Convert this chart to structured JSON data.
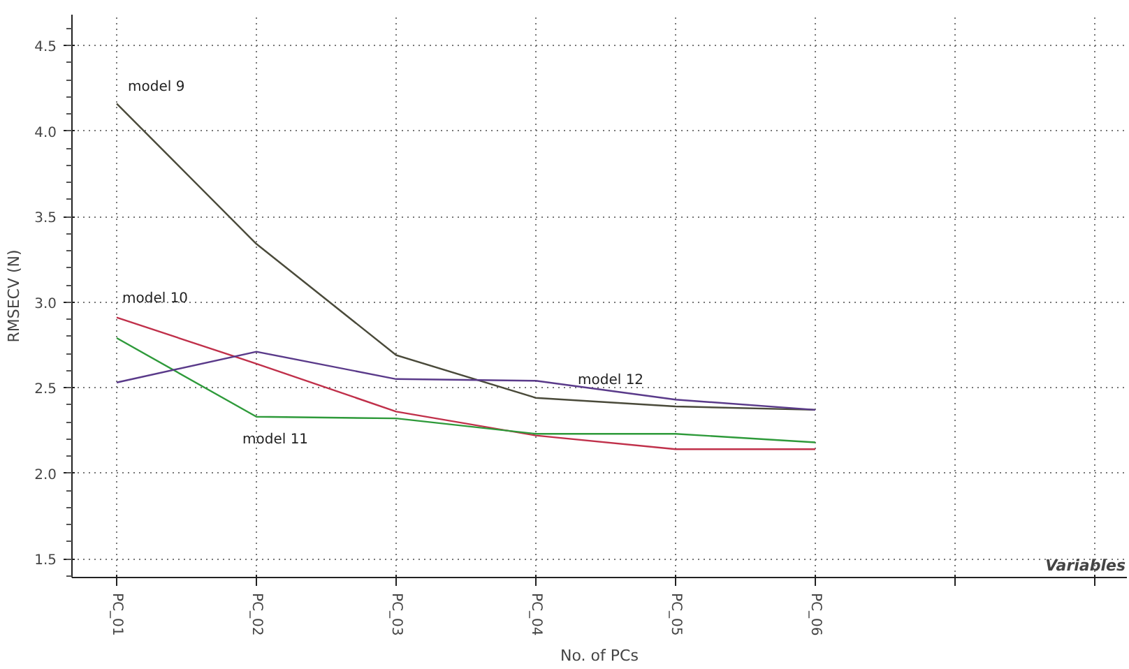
{
  "chart_data": {
    "type": "line",
    "xlabel": "No. of PCs",
    "ylabel": "RMSECV (N)",
    "categories": [
      "PC_01",
      "PC_02",
      "PC_03",
      "PC_04",
      "PC_05",
      "PC_06",
      null,
      null
    ],
    "series": [
      {
        "name": "model 9",
        "color": "#4a4a3a",
        "values": [
          4.16,
          3.34,
          2.69,
          2.44,
          2.39,
          2.37,
          null,
          null
        ]
      },
      {
        "name": "model 10",
        "color": "#c0304a",
        "values": [
          2.91,
          2.64,
          2.36,
          2.22,
          2.14,
          2.14,
          null,
          null
        ]
      },
      {
        "name": "model 11",
        "color": "#2e9a3a",
        "values": [
          2.79,
          2.33,
          2.32,
          2.23,
          2.23,
          2.18,
          null,
          null
        ]
      },
      {
        "name": "model 12",
        "color": "#5a3a8a",
        "values": [
          2.53,
          2.71,
          2.55,
          2.54,
          2.43,
          2.37,
          null,
          null
        ]
      }
    ],
    "ylim": [
      1.39,
      4.68
    ],
    "yticks": [
      1.5,
      {
        "value": 2,
        "label": "2.0"
      },
      2.5,
      {
        "value": 3,
        "label": "3.0"
      },
      3.5,
      {
        "value": 4,
        "label": "4.0"
      },
      4.5
    ],
    "grid": true,
    "marker": "none",
    "line_style": "solid",
    "annotations": [
      "Variables"
    ]
  }
}
